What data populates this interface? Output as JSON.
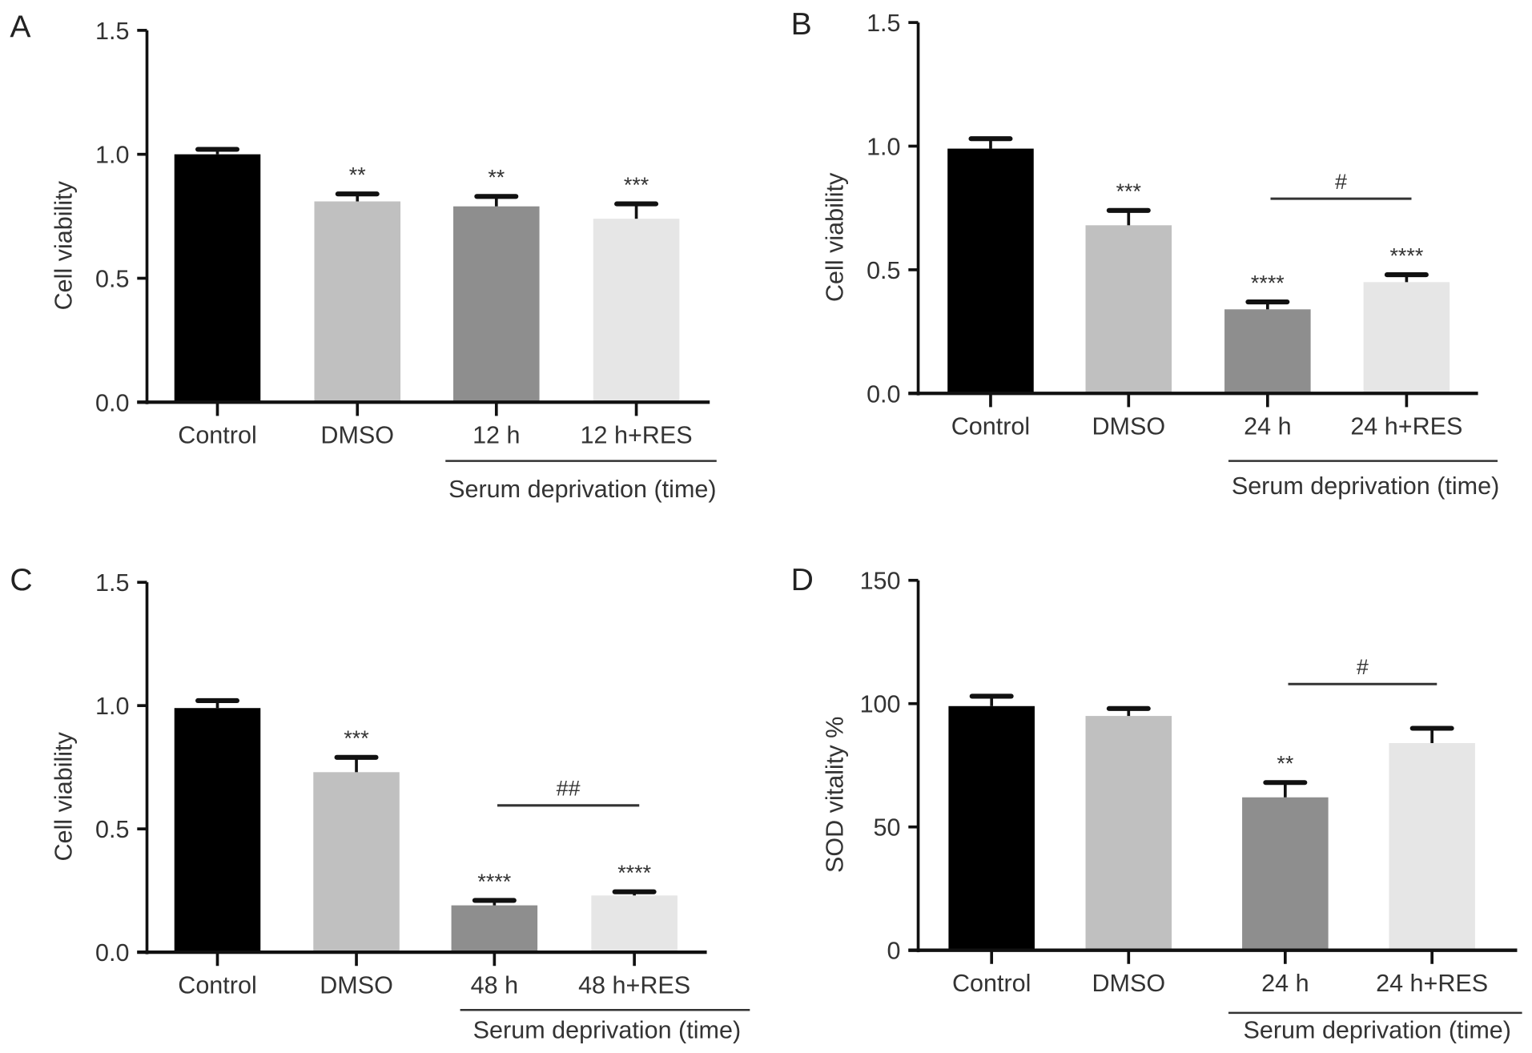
{
  "chart_data": [
    {
      "panel": "A",
      "type": "bar",
      "categories": [
        "Control",
        "DMSO",
        "12 h",
        "12 h+RES"
      ],
      "values": [
        1.0,
        0.81,
        0.79,
        0.74
      ],
      "errors": [
        0.02,
        0.03,
        0.04,
        0.06
      ],
      "significance": [
        "",
        "**",
        "**",
        "***"
      ],
      "ylabel": "Cell viability",
      "ylim": [
        0,
        1.5
      ],
      "yticks": [
        "0.0",
        "0.5",
        "1.0",
        "1.5"
      ],
      "group_label": "Serum deprivation (time)",
      "comparison": null
    },
    {
      "panel": "B",
      "type": "bar",
      "categories": [
        "Control",
        "DMSO",
        "24 h",
        "24 h+RES"
      ],
      "values": [
        0.99,
        0.68,
        0.34,
        0.45
      ],
      "errors": [
        0.04,
        0.06,
        0.03,
        0.03
      ],
      "significance": [
        "",
        "***",
        "****",
        "****"
      ],
      "ylabel": "Cell viability",
      "ylim": [
        0,
        1.5
      ],
      "yticks": [
        "0.0",
        "0.5",
        "1.0",
        "1.5"
      ],
      "group_label": "Serum deprivation (time)",
      "comparison": {
        "between": [
          "24 h",
          "24 h+RES"
        ],
        "label": "#"
      }
    },
    {
      "panel": "C",
      "type": "bar",
      "categories": [
        "Control",
        "DMSO",
        "48 h",
        "48 h+RES"
      ],
      "values": [
        0.99,
        0.73,
        0.19,
        0.23
      ],
      "errors": [
        0.03,
        0.06,
        0.02,
        0.015
      ],
      "significance": [
        "",
        "***",
        "****",
        "****"
      ],
      "ylabel": "Cell viability",
      "ylim": [
        0,
        1.5
      ],
      "yticks": [
        "0.0",
        "0.5",
        "1.0",
        "1.5"
      ],
      "group_label": "Serum deprivation (time)",
      "comparison": {
        "between": [
          "48 h",
          "48 h+RES"
        ],
        "label": "##"
      }
    },
    {
      "panel": "D",
      "type": "bar",
      "categories": [
        "Control",
        "DMSO",
        "24 h",
        "24 h+RES"
      ],
      "values": [
        99,
        95,
        62,
        84
      ],
      "errors": [
        4,
        3,
        6,
        6
      ],
      "significance": [
        "",
        "",
        "**",
        ""
      ],
      "ylabel": "SOD vitality %",
      "ylim": [
        0,
        150
      ],
      "yticks": [
        "0",
        "50",
        "100",
        "150"
      ],
      "group_label": "Serum deprivation (time)",
      "comparison": {
        "between": [
          "24 h",
          "24 h+RES"
        ],
        "label": "#"
      }
    }
  ],
  "colors": [
    "#000000",
    "#c0c0c0",
    "#8e8e8e",
    "#e6e6e6"
  ]
}
